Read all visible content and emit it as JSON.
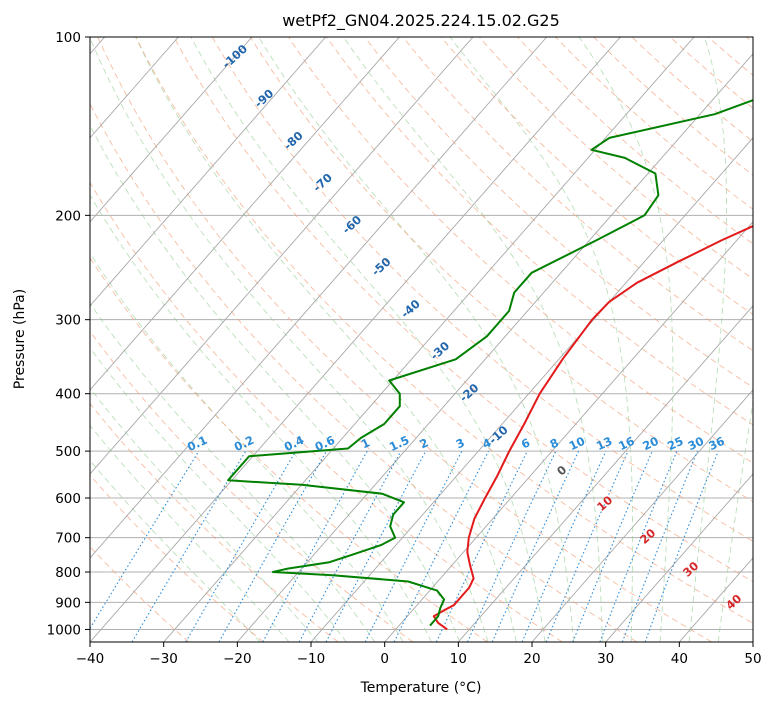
{
  "chart_data": {
    "type": "line",
    "title": "wetPf2_GN04.2025.224.15.02.G25",
    "xlabel": "Temperature (°C)",
    "ylabel": "Pressure (hPa)",
    "xlim": [
      -40,
      50
    ],
    "ylim": [
      1050,
      100
    ],
    "y_scale": "log",
    "grid": true,
    "x_ticks": [
      -40,
      -30,
      -20,
      -10,
      0,
      10,
      20,
      30,
      40,
      50
    ],
    "x_tick_labels": [
      "−40",
      "−30",
      "−20",
      "−10",
      "0",
      "10",
      "20",
      "30",
      "40",
      "50"
    ],
    "y_ticks": [
      1000,
      900,
      800,
      700,
      600,
      500,
      400,
      300,
      200,
      100
    ],
    "y_tick_labels": [
      "1000",
      "900",
      "800",
      "700",
      "600",
      "500",
      "400",
      "300",
      "200",
      "100"
    ],
    "series": [
      {
        "role": "temperature",
        "color": "#e31a1c",
        "points": [
          [
            1000,
            7.0
          ],
          [
            975,
            5.0
          ],
          [
            950,
            3.6
          ],
          [
            925,
            4.4
          ],
          [
            910,
            5.0
          ],
          [
            880,
            5.0
          ],
          [
            850,
            5.0
          ],
          [
            820,
            4.5
          ],
          [
            780,
            2.5
          ],
          [
            740,
            0.5
          ],
          [
            700,
            -1.0
          ],
          [
            650,
            -2.5
          ],
          [
            600,
            -3.5
          ],
          [
            550,
            -4.5
          ],
          [
            500,
            -5.8
          ],
          [
            450,
            -7.0
          ],
          [
            400,
            -8.5
          ],
          [
            350,
            -9.5
          ],
          [
            300,
            -10.2
          ],
          [
            280,
            -10.0
          ],
          [
            260,
            -8.5
          ],
          [
            240,
            -5.5
          ],
          [
            220,
            -2.0
          ],
          [
            200,
            2.5
          ],
          [
            180,
            6.0
          ],
          [
            160,
            9.0
          ],
          [
            140,
            12.5
          ],
          [
            120,
            17.0
          ],
          [
            110,
            21.0
          ],
          [
            100,
            24.5
          ]
        ]
      },
      {
        "role": "dewpoint",
        "color": "#008000",
        "points": [
          [
            985,
            4.2
          ],
          [
            950,
            4.2
          ],
          [
            920,
            3.5
          ],
          [
            890,
            3.0
          ],
          [
            860,
            1.0
          ],
          [
            830,
            -4.0
          ],
          [
            810,
            -15.0
          ],
          [
            800,
            -23.5
          ],
          [
            790,
            -22.0
          ],
          [
            770,
            -17.0
          ],
          [
            750,
            -15.0
          ],
          [
            720,
            -12.0
          ],
          [
            700,
            -11.0
          ],
          [
            670,
            -13.0
          ],
          [
            640,
            -14.0
          ],
          [
            610,
            -14.0
          ],
          [
            590,
            -18.0
          ],
          [
            570,
            -30.0
          ],
          [
            560,
            -40.5
          ],
          [
            540,
            -40.5
          ],
          [
            510,
            -40.5
          ],
          [
            495,
            -28.0
          ],
          [
            475,
            -27.5
          ],
          [
            450,
            -26.0
          ],
          [
            420,
            -26.0
          ],
          [
            400,
            -27.5
          ],
          [
            380,
            -30.5
          ],
          [
            350,
            -24.0
          ],
          [
            320,
            -22.5
          ],
          [
            290,
            -22.5
          ],
          [
            270,
            -24.0
          ],
          [
            250,
            -24.0
          ],
          [
            220,
            -19.0
          ],
          [
            200,
            -15.5
          ],
          [
            185,
            -16.0
          ],
          [
            170,
            -19.0
          ],
          [
            160,
            -25.0
          ],
          [
            155,
            -30.5
          ],
          [
            148,
            -29.5
          ],
          [
            135,
            -18.0
          ],
          [
            125,
            -13.0
          ],
          [
            115,
            -11.0
          ],
          [
            110,
            -13.0
          ],
          [
            105,
            -19.0
          ],
          [
            100,
            -17.0
          ]
        ]
      }
    ],
    "dry_adiabat_labels": [
      "-100",
      "-90",
      "-80",
      "-70",
      "-60",
      "-50",
      "-40",
      "-30",
      "-20",
      "-10",
      "0",
      "10",
      "20",
      "30",
      "40"
    ],
    "mixing_ratio_labels": [
      "0.1",
      "0.2",
      "0.4",
      "0.6",
      "1",
      "1.5",
      "2",
      "3",
      "4",
      "6",
      "8",
      "10",
      "13",
      "16",
      "20",
      "25",
      "30",
      "36"
    ]
  }
}
